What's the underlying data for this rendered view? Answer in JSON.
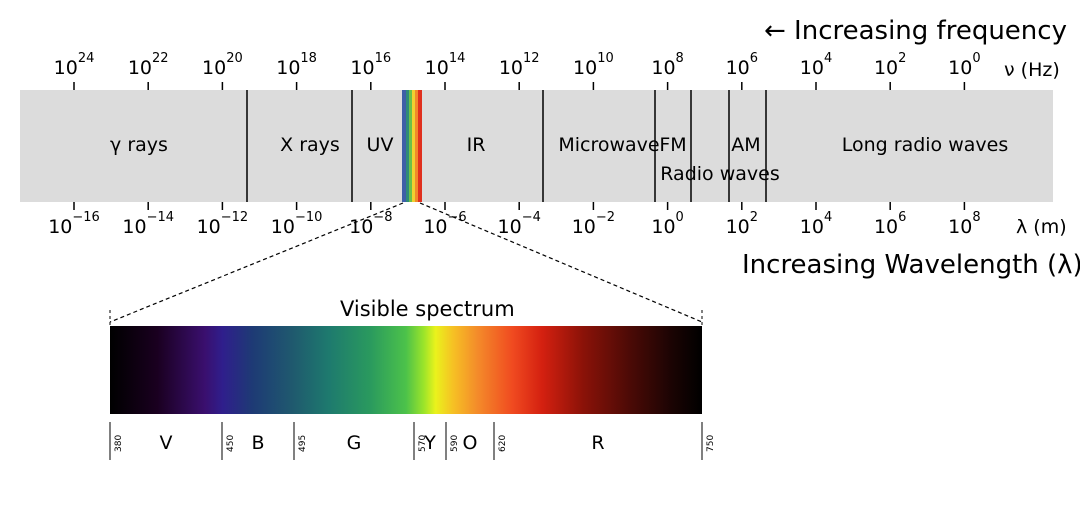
{
  "frequency_axis": {
    "title": "← Increasing frequency",
    "unit": "ν (Hz)",
    "ticks": [
      {
        "base": "10",
        "exp": "24"
      },
      {
        "base": "10",
        "exp": "22"
      },
      {
        "base": "10",
        "exp": "20"
      },
      {
        "base": "10",
        "exp": "18"
      },
      {
        "base": "10",
        "exp": "16"
      },
      {
        "base": "10",
        "exp": "14"
      },
      {
        "base": "10",
        "exp": "12"
      },
      {
        "base": "10",
        "exp": "10"
      },
      {
        "base": "10",
        "exp": "8"
      },
      {
        "base": "10",
        "exp": "6"
      },
      {
        "base": "10",
        "exp": "4"
      },
      {
        "base": "10",
        "exp": "2"
      },
      {
        "base": "10",
        "exp": "0"
      }
    ]
  },
  "wavelength_axis": {
    "title": "Increasing Wavelength (λ)→",
    "unit": "λ (m)",
    "ticks": [
      {
        "base": "10",
        "exp": "−16"
      },
      {
        "base": "10",
        "exp": "−14"
      },
      {
        "base": "10",
        "exp": "−12"
      },
      {
        "base": "10",
        "exp": "−10"
      },
      {
        "base": "10",
        "exp": "−8"
      },
      {
        "base": "10",
        "exp": "−6"
      },
      {
        "base": "10",
        "exp": "−4"
      },
      {
        "base": "10",
        "exp": "−2"
      },
      {
        "base": "10",
        "exp": "0"
      },
      {
        "base": "10",
        "exp": "2"
      },
      {
        "base": "10",
        "exp": "4"
      },
      {
        "base": "10",
        "exp": "6"
      },
      {
        "base": "10",
        "exp": "8"
      }
    ]
  },
  "bands": [
    {
      "id": "gamma",
      "label": "γ rays"
    },
    {
      "id": "xray",
      "label": "X rays"
    },
    {
      "id": "uv",
      "label": "UV"
    },
    {
      "id": "ir",
      "label": "IR"
    },
    {
      "id": "microwave",
      "label": "Microwave"
    },
    {
      "id": "fm",
      "label": "FM"
    },
    {
      "id": "radio",
      "label": "Radio waves"
    },
    {
      "id": "am",
      "label": "AM"
    },
    {
      "id": "longradio",
      "label": "Long radio waves"
    }
  ],
  "visible_spectrum": {
    "title": "Visible spectrum",
    "range_nm": [
      380,
      750
    ],
    "boundaries_nm": [
      "380",
      "450",
      "495",
      "570",
      "590",
      "620",
      "750"
    ],
    "colors": [
      {
        "label": "V",
        "from": 380,
        "to": 450
      },
      {
        "label": "B",
        "from": 450,
        "to": 495
      },
      {
        "label": "G",
        "from": 495,
        "to": 570
      },
      {
        "label": "Y",
        "from": 570,
        "to": 590
      },
      {
        "label": "O",
        "from": 590,
        "to": 620
      },
      {
        "label": "R",
        "from": 620,
        "to": 750
      }
    ]
  },
  "style_colors": {
    "band_background": "#dcdcdc",
    "divider": "#000000"
  }
}
